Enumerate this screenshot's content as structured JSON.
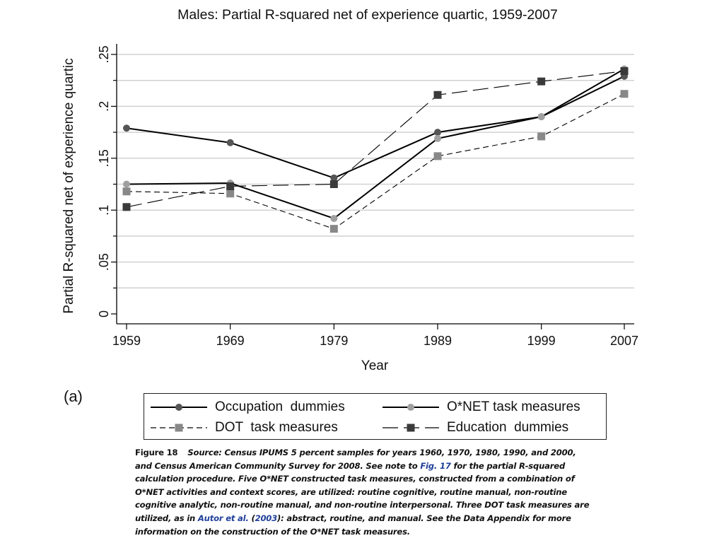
{
  "chart_data": {
    "type": "line",
    "title": "Males: Partial R-squared net of experience quartic, 1959-2007",
    "xlabel": "Year",
    "ylabel": "Partial R-squared net of experience quartic",
    "x": [
      1959,
      1969,
      1979,
      1989,
      1999,
      2007
    ],
    "x_tick_labels": [
      "1959",
      "1969",
      "1979",
      "1989",
      "1999",
      "2007"
    ],
    "ylim": [
      0,
      0.25
    ],
    "y_ticks": [
      0,
      0.05,
      0.1,
      0.15,
      0.2,
      0.25
    ],
    "y_tick_labels": [
      "0",
      ".05",
      ".1",
      ".15",
      ".2",
      ".25"
    ],
    "grid": true,
    "legend_position": "bottom",
    "series": [
      {
        "name": "Occupation  dummies",
        "values": [
          0.179,
          0.165,
          0.131,
          0.175,
          0.19,
          0.229
        ],
        "color": "#555555",
        "line": "solid",
        "marker": "circle"
      },
      {
        "name": "O*NET task measures",
        "values": [
          0.125,
          0.126,
          0.092,
          0.169,
          0.19,
          0.236
        ],
        "color": "#a0a0a0",
        "line": "solid",
        "marker": "circle"
      },
      {
        "name": "DOT  task measures",
        "values": [
          0.118,
          0.116,
          0.082,
          0.152,
          0.171,
          0.212
        ],
        "color": "#888888",
        "line": "short-dash",
        "marker": "square"
      },
      {
        "name": "Education  dummies",
        "values": [
          0.103,
          0.123,
          0.125,
          0.211,
          0.224,
          0.234
        ],
        "color": "#3a3a3a",
        "line": "long-dash",
        "marker": "square"
      }
    ]
  },
  "panel_label": "(a)",
  "caption": {
    "figure_label": "Figure 18",
    "part1": "Source: Census IPUMS 5 percent samples for years 1960, 1970, 1980, 1990, and 2000, and Census American Community Survey for 2008. See note to ",
    "link1": "Fig. 17",
    "part2": " for the partial R-squared calculation procedure. Five O*NET constructed task measures, constructed from a combination of O*NET activities and context scores, are utilized: routine cognitive, routine manual, non-routine cognitive analytic, non-routine manual, and non-routine interpersonal. Three DOT task measures are utilized, as in ",
    "link2": "Autor et al.",
    "part3": " (",
    "link3": "2003",
    "part4": "): abstract, routine, and manual. See the Data Appendix for more information on the construction of the O*NET task measures."
  }
}
